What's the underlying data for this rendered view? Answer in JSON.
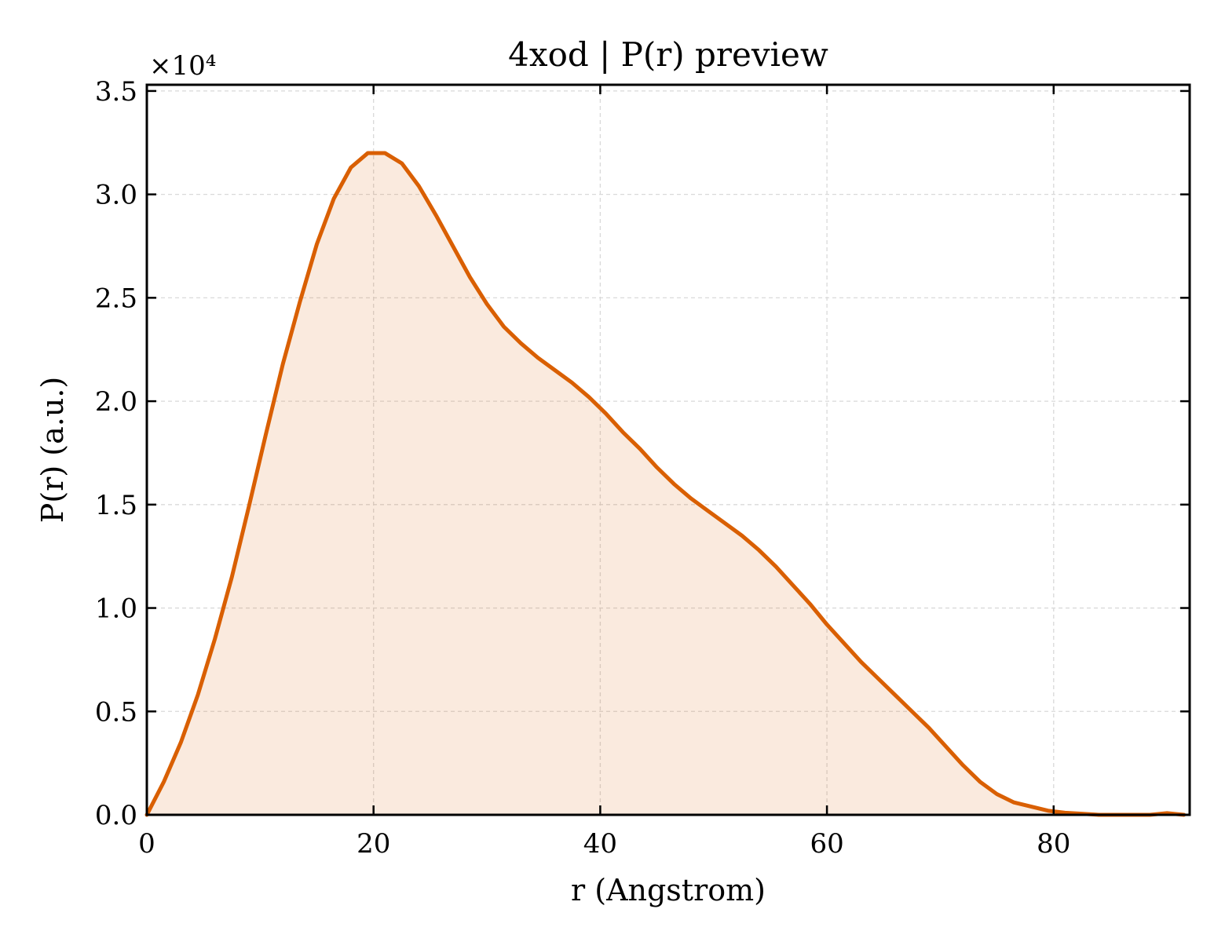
{
  "chart_data": {
    "type": "area",
    "title": "4xod | P(r) preview",
    "xlabel": "r (Angstrom)",
    "ylabel": "P(r) (a.u.)",
    "y_offset_label": "×10⁴",
    "xlim": [
      0,
      92
    ],
    "ylim": [
      0,
      35300
    ],
    "x_ticks": [
      0,
      20,
      40,
      60,
      80
    ],
    "x_tick_labels": [
      "0",
      "20",
      "40",
      "60",
      "80"
    ],
    "y_ticks": [
      0,
      5000,
      10000,
      15000,
      20000,
      25000,
      30000,
      35000
    ],
    "y_tick_labels": [
      "0.0",
      "0.5",
      "1.0",
      "1.5",
      "2.0",
      "2.5",
      "3.0",
      "3.5"
    ],
    "grid": true,
    "series": [
      {
        "color": "#d95f02",
        "fill_color": "#d95f02",
        "fill_opacity": 0.13,
        "x": [
          0,
          1.5,
          3.0,
          4.5,
          6.0,
          7.5,
          9.0,
          10.5,
          12.0,
          13.5,
          15.0,
          16.5,
          18.0,
          19.5,
          21.0,
          22.5,
          24.0,
          25.5,
          27.0,
          28.5,
          30.0,
          31.5,
          33.0,
          34.5,
          36.0,
          37.5,
          39.0,
          40.5,
          42.0,
          43.5,
          45.0,
          46.5,
          48.0,
          49.5,
          51.0,
          52.5,
          54.0,
          55.5,
          57.0,
          58.5,
          60.0,
          61.5,
          63.0,
          64.5,
          66.0,
          67.5,
          69.0,
          70.5,
          72.0,
          73.5,
          75.0,
          76.5,
          78.0,
          79.5,
          81.0,
          82.5,
          84.0,
          85.5,
          87.0,
          88.5,
          90.0,
          91.5
        ],
        "y": [
          0,
          1600,
          3500,
          5800,
          8500,
          11500,
          14900,
          18400,
          21800,
          24800,
          27600,
          29800,
          31300,
          32000,
          32000,
          31500,
          30400,
          29000,
          27500,
          26000,
          24700,
          23600,
          22800,
          22100,
          21500,
          20900,
          20200,
          19400,
          18500,
          17700,
          16800,
          16000,
          15300,
          14700,
          14100,
          13500,
          12800,
          12000,
          11100,
          10200,
          9200,
          8300,
          7400,
          6600,
          5800,
          5000,
          4200,
          3300,
          2400,
          1600,
          1000,
          600,
          400,
          200,
          100,
          50,
          0,
          0,
          0,
          0,
          80,
          0
        ]
      }
    ]
  },
  "colors": {
    "line": "#d95f02",
    "grid": "#d9d9d9",
    "axes": "#000000",
    "background": "#ffffff"
  }
}
